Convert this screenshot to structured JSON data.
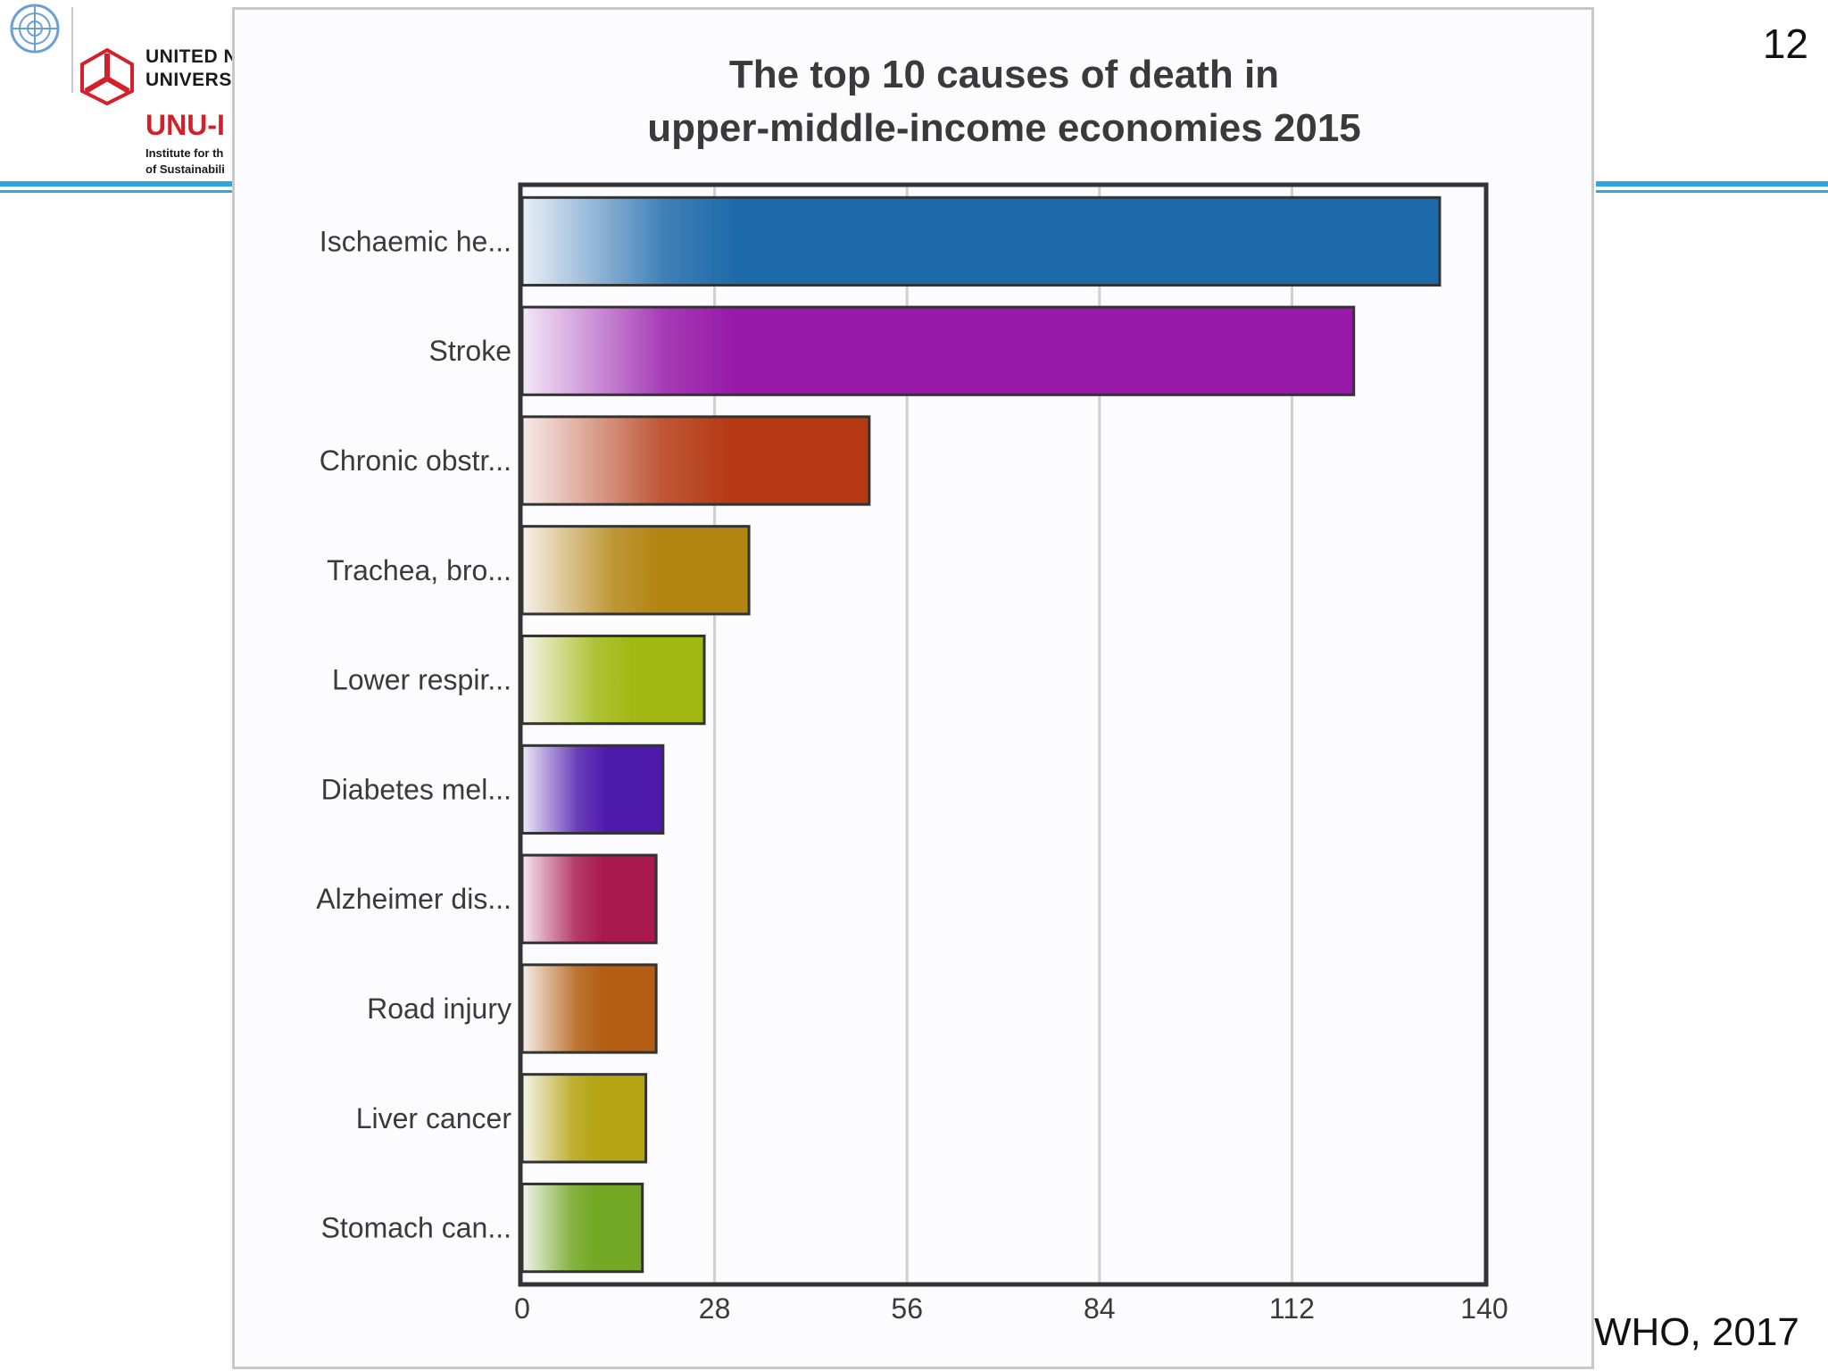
{
  "header": {
    "org_line1": "UNITED N",
    "org_line2": "UNIVERSI",
    "institute_code": "UNU-I",
    "institute_line1": "Institute for th",
    "institute_line2": "of Sustainabili"
  },
  "slide_number": "12",
  "source_citation": "WHO, 2017",
  "chart_data": {
    "type": "bar",
    "orientation": "horizontal",
    "title": "The top 10 causes of death in",
    "subtitle": "upper-middle-income economies 2015",
    "categories": [
      "Ischaemic he...",
      "Stroke",
      "Chronic obstr...",
      "Trachea, bro...",
      "Lower respir...",
      "Diabetes mel...",
      "Alzheimer dis...",
      "Road injury",
      "Liver cancer",
      "Stomach can..."
    ],
    "values": [
      133.5,
      121,
      50.5,
      33,
      26.5,
      20.5,
      19.5,
      19.5,
      18,
      17.5
    ],
    "colors": [
      "#1d6aab",
      "#9619a8",
      "#b53a14",
      "#b38513",
      "#a1b813",
      "#4e1aab",
      "#a91a4c",
      "#b35e13",
      "#b5a413",
      "#72a824"
    ],
    "xlim": [
      0,
      140
    ],
    "xticks": [
      "0",
      "28",
      "56",
      "84",
      "112",
      "140"
    ],
    "xtick_values": [
      0,
      28,
      56,
      84,
      112,
      140
    ],
    "grid": true,
    "xlabel": "",
    "ylabel": ""
  }
}
